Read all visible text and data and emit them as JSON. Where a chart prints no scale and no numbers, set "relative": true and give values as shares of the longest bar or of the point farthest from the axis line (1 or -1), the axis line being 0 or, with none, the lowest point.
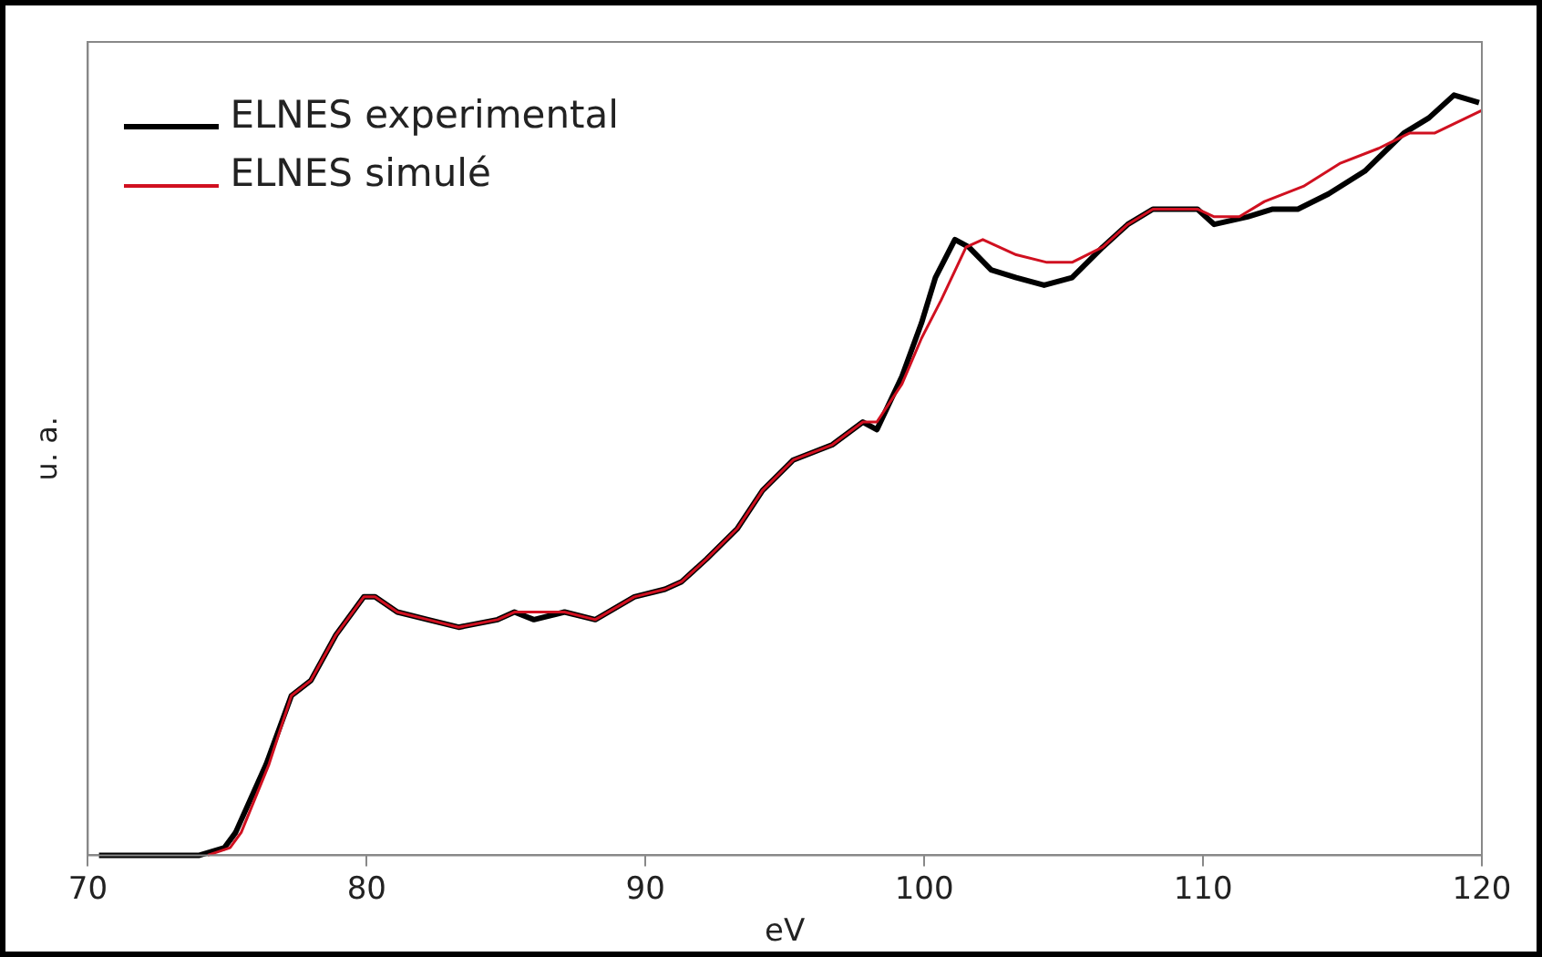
{
  "chart_data": {
    "type": "line",
    "xlabel": "eV",
    "ylabel": "u. a.",
    "relative": true,
    "xlim": [
      70,
      120
    ],
    "xticks": [
      70,
      80,
      90,
      100,
      110,
      120
    ],
    "grid": false,
    "legend": "top left",
    "marker": "none",
    "line_style": "solid",
    "series": [
      {
        "name": "ELNES experimental",
        "color": "#000000",
        "x": [
          70.4,
          74,
          74.9,
          75.3,
          76.4,
          77.3,
          78,
          78.9,
          79.9,
          80.3,
          81.1,
          82.2,
          83.3,
          84.7,
          85.3,
          86,
          87.1,
          88.2,
          89.6,
          90.7,
          91.3,
          92.2,
          93.3,
          94.2,
          95.3,
          96.7,
          97.8,
          98.3,
          99.2,
          99.9,
          100.4,
          101.1,
          101.6,
          102.4,
          103.3,
          104.3,
          105.3,
          106.4,
          107.3,
          108.2,
          109.1,
          109.8,
          110.4,
          111.6,
          112.5,
          113.4,
          114.5,
          115.8,
          117.2,
          118.1,
          119,
          119.9
        ],
        "values": [
          0,
          0,
          0.01,
          0.03,
          0.12,
          0.21,
          0.23,
          0.29,
          0.34,
          0.34,
          0.32,
          0.31,
          0.3,
          0.31,
          0.32,
          0.31,
          0.32,
          0.31,
          0.34,
          0.35,
          0.36,
          0.39,
          0.43,
          0.48,
          0.52,
          0.54,
          0.57,
          0.56,
          0.63,
          0.7,
          0.76,
          0.81,
          0.8,
          0.77,
          0.76,
          0.75,
          0.76,
          0.8,
          0.83,
          0.85,
          0.85,
          0.85,
          0.83,
          0.84,
          0.85,
          0.85,
          0.87,
          0.9,
          0.95,
          0.97,
          1,
          0.99
        ]
      },
      {
        "name": "ELNES simulé",
        "color": "#d01020",
        "x": [
          74.3,
          75.1,
          75.5,
          76.5,
          77.3,
          78,
          78.9,
          79.9,
          80.3,
          81.1,
          82.2,
          83.3,
          84.7,
          85.3,
          86,
          87.1,
          88.2,
          89.6,
          90.7,
          91.3,
          92.2,
          93.3,
          94.2,
          95.3,
          96.7,
          97.8,
          98.3,
          99.2,
          99.9,
          100.6,
          101.5,
          102.1,
          103.3,
          104.4,
          105.3,
          106.4,
          107.3,
          108.2,
          109.1,
          109.8,
          110.4,
          111.3,
          112.2,
          113.6,
          114.9,
          116.3,
          117.4,
          118.3,
          120
        ],
        "values": [
          0,
          0.01,
          0.03,
          0.12,
          0.21,
          0.23,
          0.29,
          0.34,
          0.34,
          0.32,
          0.31,
          0.3,
          0.31,
          0.32,
          0.32,
          0.32,
          0.31,
          0.34,
          0.35,
          0.36,
          0.39,
          0.43,
          0.48,
          0.52,
          0.54,
          0.57,
          0.57,
          0.62,
          0.68,
          0.73,
          0.8,
          0.81,
          0.79,
          0.78,
          0.78,
          0.8,
          0.83,
          0.85,
          0.85,
          0.85,
          0.84,
          0.84,
          0.86,
          0.88,
          0.91,
          0.93,
          0.95,
          0.95,
          0.98
        ]
      }
    ]
  }
}
